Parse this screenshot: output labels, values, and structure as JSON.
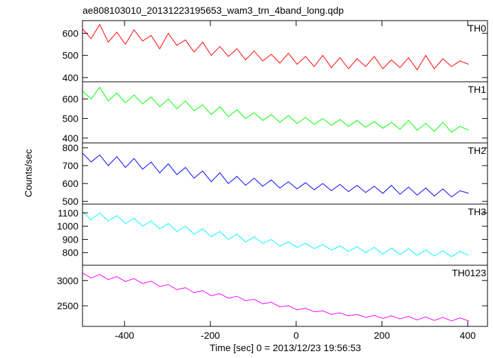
{
  "chart_data": {
    "type": "line",
    "title": "ae808103010_20131223195653_wam3_trn_4band_long.qdp",
    "xlabel": "Time [sec] 0 = 2013/12/23 19:56:53",
    "ylabel": "Counts/sec",
    "xlim": [
      -498,
      446
    ],
    "xticks": [
      -400,
      -200,
      0,
      200,
      400
    ],
    "x": [
      -498,
      -478,
      -458,
      -438,
      -418,
      -398,
      -378,
      -358,
      -338,
      -318,
      -298,
      -278,
      -258,
      -238,
      -218,
      -198,
      -178,
      -158,
      -138,
      -118,
      -98,
      -78,
      -58,
      -38,
      -18,
      2,
      22,
      42,
      62,
      82,
      102,
      122,
      142,
      162,
      182,
      202,
      222,
      242,
      262,
      282,
      302,
      322,
      342,
      362,
      382,
      402
    ],
    "series": [
      {
        "name": "TH0",
        "color": "#ff0000",
        "ylim": [
          381,
          657
        ],
        "yticks": [
          400,
          500,
          600
        ],
        "values": [
          620,
          575,
          640,
          560,
          605,
          550,
          615,
          565,
          590,
          530,
          600,
          545,
          570,
          515,
          560,
          500,
          540,
          495,
          530,
          480,
          520,
          475,
          505,
          465,
          510,
          460,
          495,
          450,
          500,
          445,
          490,
          440,
          485,
          450,
          495,
          440,
          480,
          445,
          490,
          435,
          500,
          440,
          485,
          450,
          475,
          460
        ]
      },
      {
        "name": "TH1",
        "color": "#00ff00",
        "ylim": [
          375,
          688
        ],
        "yticks": [
          400,
          500,
          600
        ],
        "values": [
          640,
          600,
          660,
          590,
          630,
          580,
          620,
          575,
          610,
          560,
          600,
          550,
          590,
          540,
          570,
          520,
          560,
          510,
          545,
          500,
          530,
          490,
          520,
          480,
          515,
          475,
          505,
          470,
          500,
          465,
          495,
          460,
          490,
          455,
          485,
          450,
          480,
          445,
          490,
          440,
          475,
          435,
          480,
          430,
          460,
          440
        ]
      },
      {
        "name": "TH2",
        "color": "#0000ff",
        "ylim": [
          485,
          827
        ],
        "yticks": [
          500,
          600,
          700,
          800
        ],
        "values": [
          770,
          720,
          760,
          700,
          750,
          690,
          740,
          680,
          720,
          660,
          710,
          650,
          690,
          630,
          670,
          610,
          660,
          600,
          640,
          590,
          630,
          585,
          620,
          575,
          610,
          570,
          605,
          565,
          600,
          560,
          595,
          555,
          590,
          550,
          585,
          545,
          590,
          540,
          580,
          535,
          575,
          530,
          570,
          525,
          560,
          545
        ]
      },
      {
        "name": "TH3",
        "color": "#00ffff",
        "ylim": [
          705,
          1167
        ],
        "yticks": [
          800,
          900,
          1000,
          1100
        ],
        "values": [
          1110,
          1050,
          1100,
          1040,
          1080,
          1020,
          1060,
          1000,
          1040,
          980,
          1020,
          960,
          1000,
          940,
          980,
          920,
          960,
          900,
          940,
          880,
          920,
          870,
          900,
          850,
          880,
          840,
          870,
          830,
          860,
          820,
          850,
          810,
          845,
          800,
          840,
          790,
          835,
          785,
          830,
          780,
          820,
          775,
          815,
          770,
          810,
          780
        ]
      },
      {
        "name": "TH0123",
        "color": "#ff00ff",
        "ylim": [
          2092,
          3303
        ],
        "yticks": [
          2500,
          3000
        ],
        "values": [
          3150,
          3050,
          3120,
          3020,
          3080,
          2980,
          3040,
          2940,
          2990,
          2880,
          2920,
          2820,
          2860,
          2760,
          2800,
          2700,
          2740,
          2650,
          2690,
          2600,
          2630,
          2540,
          2570,
          2480,
          2500,
          2420,
          2450,
          2380,
          2400,
          2330,
          2360,
          2300,
          2330,
          2270,
          2310,
          2250,
          2300,
          2240,
          2290,
          2220,
          2280,
          2210,
          2270,
          2200,
          2260,
          2200
        ]
      }
    ]
  }
}
